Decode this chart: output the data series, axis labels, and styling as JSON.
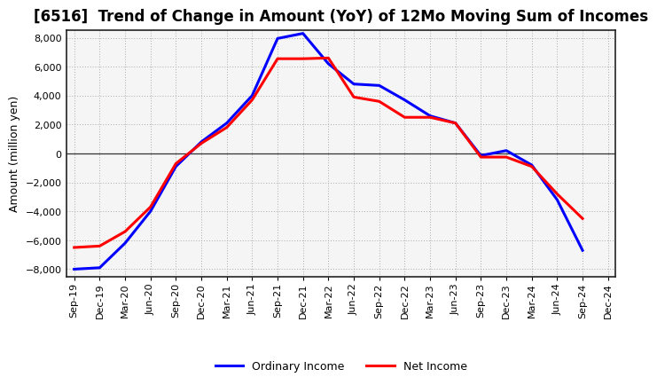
{
  "title": "[6516]  Trend of Change in Amount (YoY) of 12Mo Moving Sum of Incomes",
  "ylabel": "Amount (million yen)",
  "background_color": "#ffffff",
  "plot_bg_color": "#f5f5f5",
  "grid_color": "#aaaaaa",
  "x_labels": [
    "Sep-19",
    "Dec-19",
    "Mar-20",
    "Jun-20",
    "Sep-20",
    "Dec-20",
    "Mar-21",
    "Jun-21",
    "Sep-21",
    "Dec-21",
    "Mar-22",
    "Jun-22",
    "Sep-22",
    "Dec-22",
    "Mar-23",
    "Jun-23",
    "Sep-23",
    "Dec-23",
    "Mar-24",
    "Jun-24",
    "Sep-24",
    "Dec-24"
  ],
  "ordinary_income": [
    -8000,
    -7900,
    -6200,
    -4000,
    -900,
    800,
    2100,
    4000,
    7950,
    8300,
    6200,
    4800,
    4700,
    3700,
    2600,
    2100,
    -150,
    200,
    -800,
    -3200,
    -6700,
    null
  ],
  "net_income": [
    -6500,
    -6400,
    -5400,
    -3700,
    -700,
    700,
    1800,
    3700,
    6550,
    6550,
    6600,
    3900,
    3600,
    2500,
    2500,
    2100,
    -250,
    -250,
    -900,
    -2800,
    -4500,
    null
  ],
  "ylim_min": -8500,
  "ylim_max": 8500,
  "yticks": [
    -8000,
    -6000,
    -4000,
    -2000,
    0,
    2000,
    4000,
    6000,
    8000
  ],
  "ordinary_color": "#0000ff",
  "net_color": "#ff0000",
  "line_width": 2.2,
  "title_fontsize": 12,
  "ylabel_fontsize": 9,
  "tick_fontsize": 8,
  "legend_fontsize": 9
}
